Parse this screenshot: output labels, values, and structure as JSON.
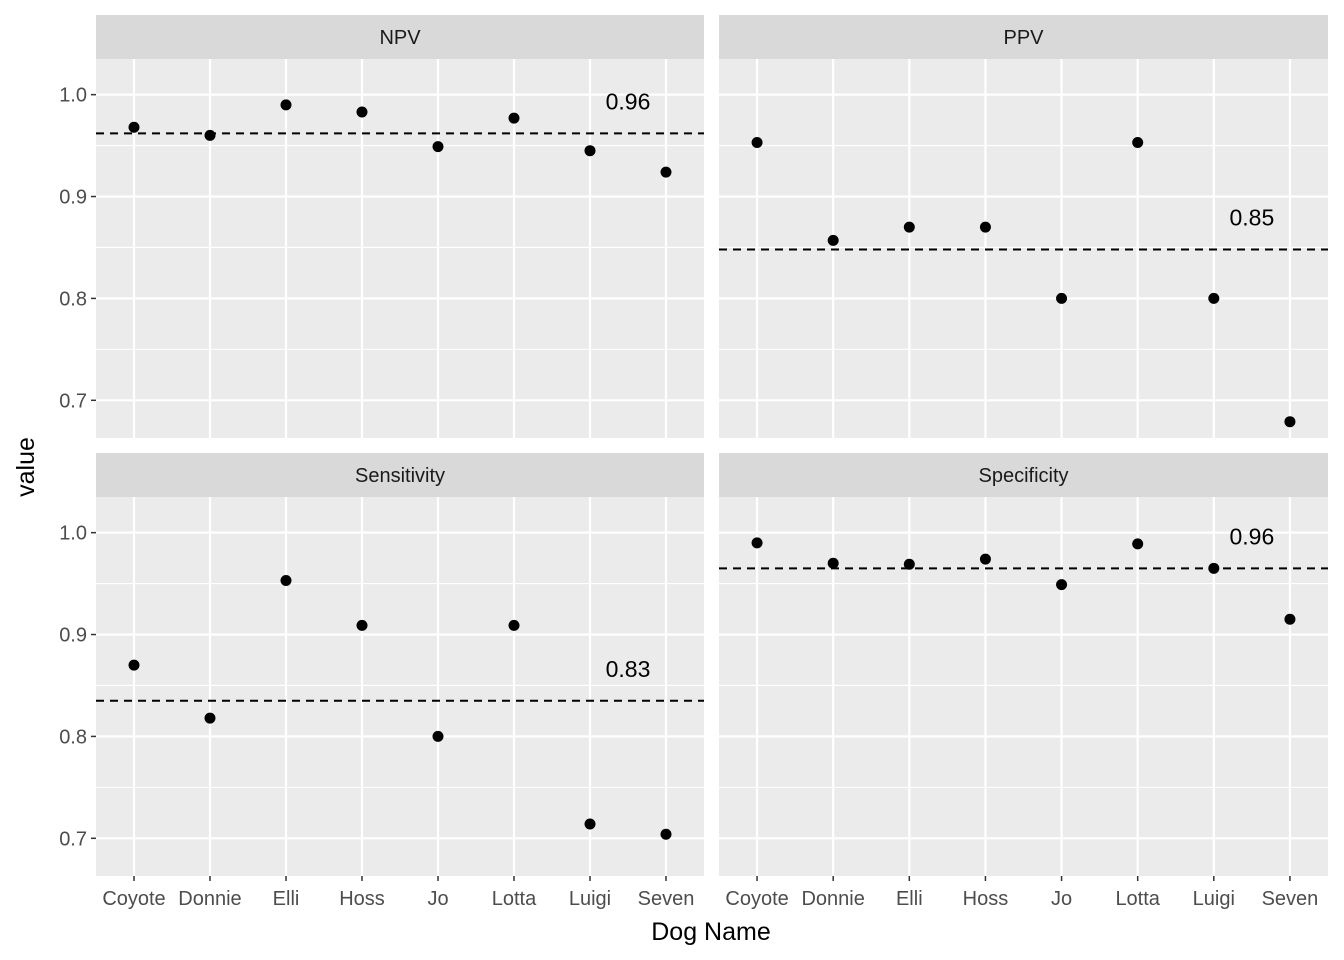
{
  "chart_data": {
    "type": "scatter",
    "facet_layout": "2x2",
    "xlabel": "Dog Name",
    "ylabel": "value",
    "categories": [
      "Coyote",
      "Donnie",
      "Elli",
      "Hoss",
      "Jo",
      "Lotta",
      "Luigi",
      "Seven"
    ],
    "yticks": [
      0.7,
      0.8,
      0.9,
      1.0
    ],
    "ytick_labels": [
      "0.7",
      "0.8",
      "0.9",
      "1.0"
    ],
    "ylim": [
      0.663,
      1.035
    ],
    "grid": true,
    "point_color": "#000000",
    "panel_background": "#ebebeb",
    "strip_background": "#d9d9d9",
    "panels": [
      {
        "name": "NPV",
        "values": [
          0.968,
          0.96,
          0.99,
          0.983,
          0.949,
          0.977,
          0.945,
          0.924
        ],
        "reference": 0.962,
        "reference_label": "0.96"
      },
      {
        "name": "PPV",
        "values": [
          0.953,
          0.857,
          0.87,
          0.87,
          0.8,
          0.953,
          0.8,
          0.679
        ],
        "reference": 0.848,
        "reference_label": "0.85"
      },
      {
        "name": "Sensitivity",
        "values": [
          0.87,
          0.818,
          0.953,
          0.909,
          0.8,
          0.909,
          0.714,
          0.704
        ],
        "reference": 0.835,
        "reference_label": "0.83"
      },
      {
        "name": "Specificity",
        "values": [
          0.99,
          0.97,
          0.969,
          0.974,
          0.949,
          0.989,
          0.965,
          0.915
        ],
        "reference": 0.965,
        "reference_label": "0.96"
      }
    ]
  }
}
